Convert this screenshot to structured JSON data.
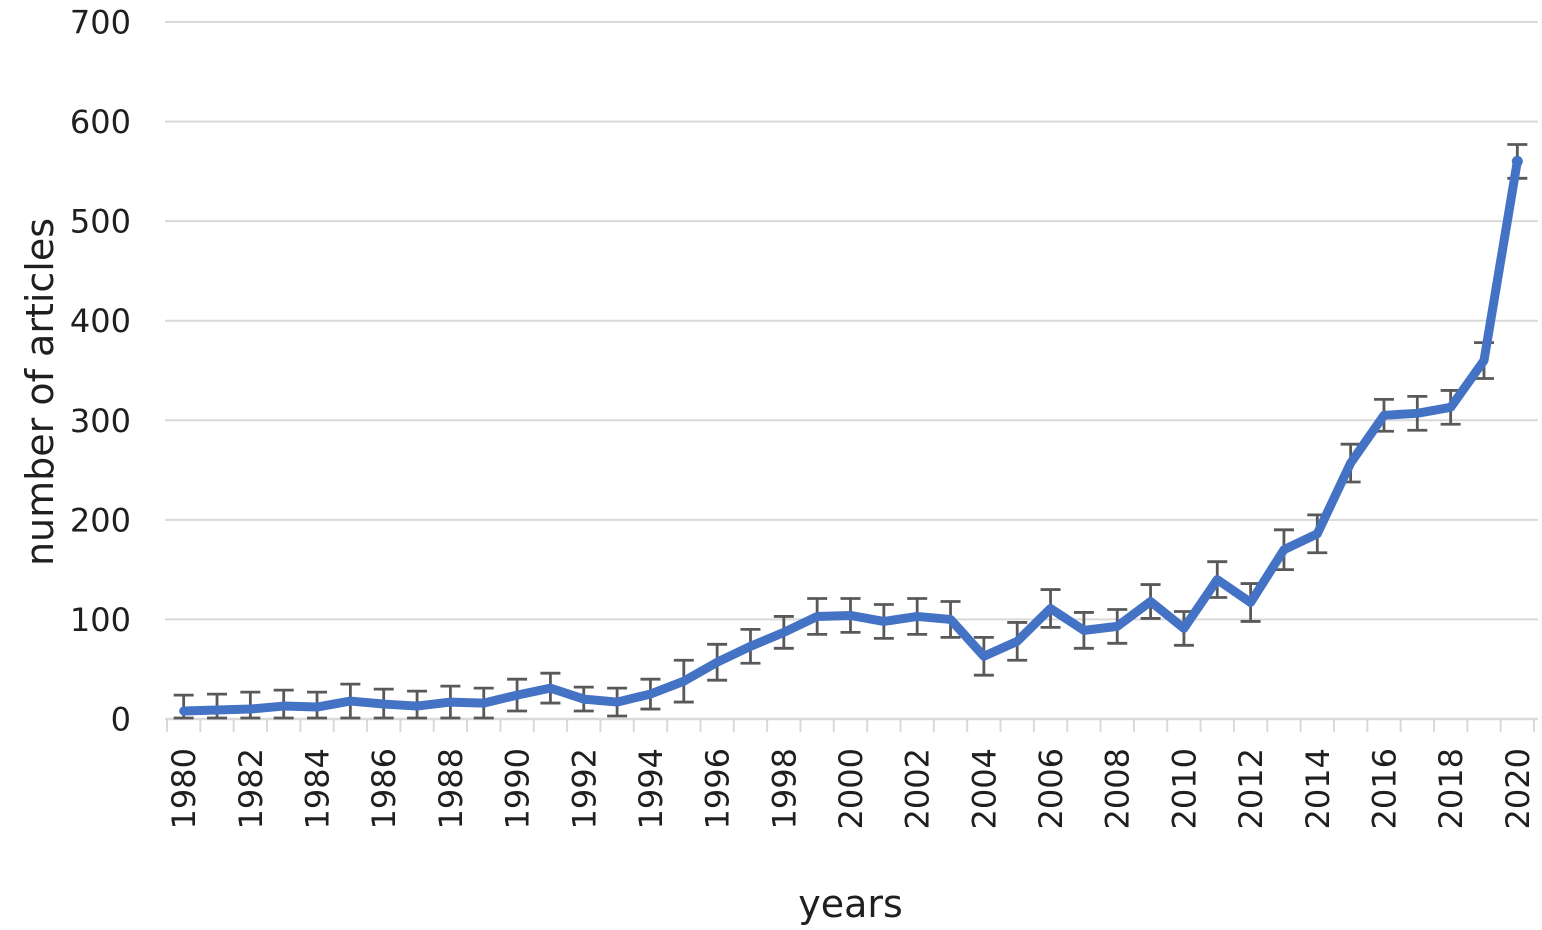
{
  "chart_data": {
    "type": "line",
    "title": "",
    "xlabel": "years",
    "ylabel": "number of articles",
    "x": [
      1980,
      1981,
      1982,
      1983,
      1984,
      1985,
      1986,
      1987,
      1988,
      1989,
      1990,
      1991,
      1992,
      1993,
      1994,
      1995,
      1996,
      1997,
      1998,
      1999,
      2000,
      2001,
      2002,
      2003,
      2004,
      2005,
      2006,
      2007,
      2008,
      2009,
      2010,
      2011,
      2012,
      2013,
      2014,
      2015,
      2016,
      2017,
      2018,
      2019,
      2020
    ],
    "series": [
      {
        "name": "number of articles",
        "values": [
          8,
          9,
          10,
          13,
          12,
          18,
          15,
          13,
          17,
          16,
          24,
          31,
          20,
          17,
          25,
          38,
          57,
          73,
          87,
          103,
          104,
          98,
          103,
          100,
          63,
          78,
          111,
          89,
          93,
          118,
          91,
          140,
          117,
          170,
          186,
          257,
          305,
          307,
          313,
          360,
          560
        ],
        "errors": [
          16,
          16,
          17,
          16,
          15,
          17,
          15,
          15,
          16,
          15,
          16,
          15,
          12,
          14,
          15,
          21,
          18,
          17,
          16,
          18,
          17,
          17,
          18,
          18,
          19,
          19,
          19,
          18,
          17,
          17,
          17,
          18,
          19,
          20,
          19,
          19,
          16,
          17,
          17,
          18,
          17
        ]
      }
    ],
    "ylim": [
      0,
      700
    ],
    "yticks": [
      0,
      100,
      200,
      300,
      400,
      500,
      600,
      700
    ],
    "xticks_labeled": [
      1980,
      1982,
      1984,
      1986,
      1988,
      1990,
      1992,
      1994,
      1996,
      1998,
      2000,
      2002,
      2004,
      2006,
      2008,
      2010,
      2012,
      2014,
      2016,
      2018,
      2020
    ],
    "grid": "horizontal",
    "legend": "none",
    "error_bars": "vertical-with-caps",
    "colors": {
      "line": "#4472C4",
      "error_bar": "#595959",
      "gridline": "#D9D9D9",
      "axis": "#D9D9D9",
      "text": "#1F1F1F",
      "background": "#FFFFFF"
    }
  }
}
